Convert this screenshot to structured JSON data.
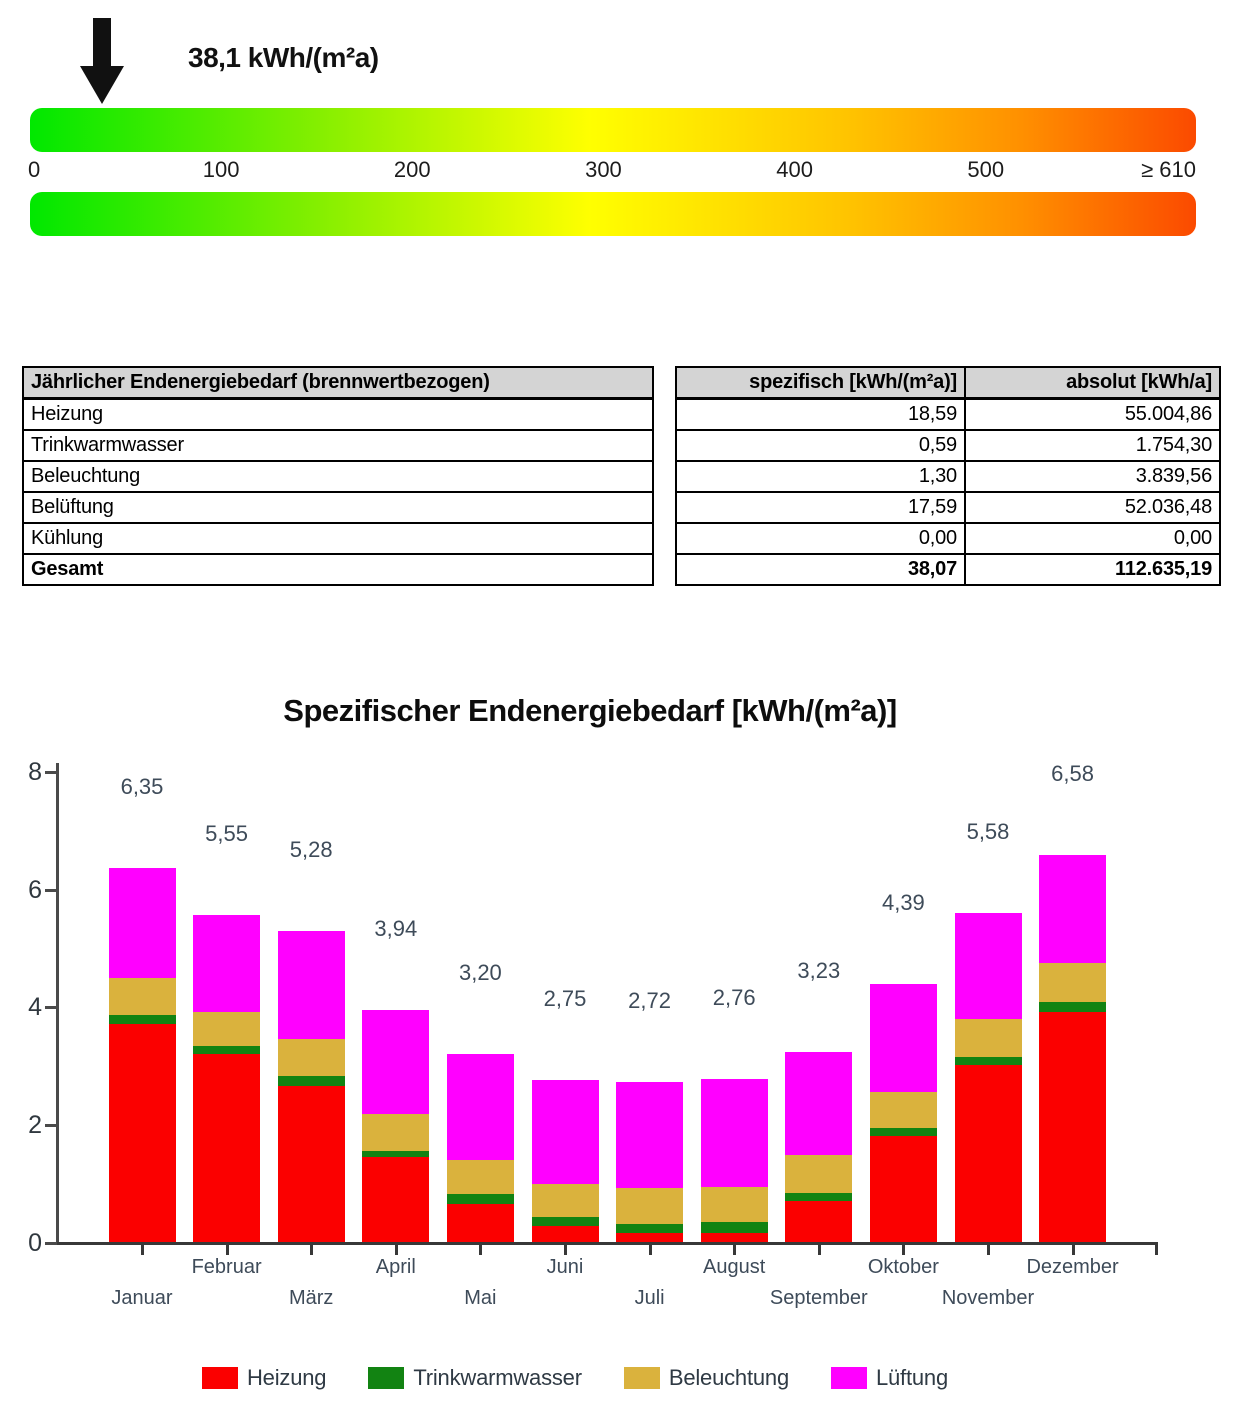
{
  "scale": {
    "pointer_value_label": "38,1 kWh/(m²a)",
    "pointer_value": 38.1,
    "min": 0,
    "max": 610,
    "ticks": [
      {
        "label": "0",
        "value": 0,
        "align": "left"
      },
      {
        "label": "100",
        "value": 100,
        "align": "center"
      },
      {
        "label": "200",
        "value": 200,
        "align": "center"
      },
      {
        "label": "300",
        "value": 300,
        "align": "center"
      },
      {
        "label": "400",
        "value": 400,
        "align": "center"
      },
      {
        "label": "500",
        "value": 500,
        "align": "center"
      },
      {
        "label": "≥ 610",
        "value": 610,
        "align": "right"
      }
    ],
    "gradient_stops": [
      [
        "#00e800",
        0
      ],
      [
        "#86ef00",
        25
      ],
      [
        "#ffff00",
        48
      ],
      [
        "#ffc400",
        70
      ],
      [
        "#ff9000",
        85
      ],
      [
        "#fb4a00",
        100
      ]
    ]
  },
  "table": {
    "header": {
      "category": "Jährlicher Endenergiebedarf (brennwertbezogen)",
      "spezifisch": "spezifisch [kWh/(m²a)]",
      "absolut": "absolut [kWh/a]"
    },
    "rows": [
      {
        "label": "Heizung",
        "spezifisch": "18,59",
        "absolut": "55.004,86"
      },
      {
        "label": "Trinkwarmwasser",
        "spezifisch": "0,59",
        "absolut": "1.754,30"
      },
      {
        "label": "Beleuchtung",
        "spezifisch": "1,30",
        "absolut": "3.839,56"
      },
      {
        "label": "Belüftung",
        "spezifisch": "17,59",
        "absolut": "52.036,48"
      },
      {
        "label": "Kühlung",
        "spezifisch": "0,00",
        "absolut": "0,00"
      },
      {
        "label": "Gesamt",
        "spezifisch": "38,07",
        "absolut": "112.635,19"
      }
    ]
  },
  "chart_data": {
    "type": "bar",
    "stacked": true,
    "title": "Spezifischer Endenergiebedarf [kWh/(m²a)]",
    "categories": [
      "Januar",
      "Februar",
      "März",
      "April",
      "Mai",
      "Juni",
      "Juli",
      "August",
      "September",
      "Oktober",
      "November",
      "Dezember"
    ],
    "series": [
      {
        "name": "Heizung",
        "color": "#fb0000",
        "values": [
          3.7,
          3.2,
          2.65,
          1.45,
          0.65,
          0.27,
          0.16,
          0.16,
          0.7,
          1.8,
          3.0,
          3.9
        ]
      },
      {
        "name": "Trinkwarmwasser",
        "color": "#128312",
        "values": [
          0.15,
          0.13,
          0.17,
          0.1,
          0.17,
          0.15,
          0.15,
          0.18,
          0.14,
          0.13,
          0.15,
          0.17
        ]
      },
      {
        "name": "Beleuchtung",
        "color": "#dab23d",
        "values": [
          0.63,
          0.57,
          0.62,
          0.62,
          0.58,
          0.56,
          0.6,
          0.6,
          0.64,
          0.62,
          0.63,
          0.66
        ]
      },
      {
        "name": "Lüftung",
        "color": "#ff00ff",
        "values": [
          1.87,
          1.65,
          1.84,
          1.77,
          1.8,
          1.77,
          1.81,
          1.82,
          1.75,
          1.84,
          1.8,
          1.85
        ]
      }
    ],
    "totals_labels": [
      "6,35",
      "5,55",
      "5,28",
      "3,94",
      "3,20",
      "2,75",
      "2,72",
      "2,76",
      "3,23",
      "4,39",
      "5,58",
      "6,58"
    ],
    "ylim": [
      0,
      8
    ],
    "yticks": [
      {
        "label": "0",
        "value": 0
      },
      {
        "label": "2",
        "value": 2
      },
      {
        "label": "4",
        "value": 4
      },
      {
        "label": "6",
        "value": 6
      },
      {
        "label": "8",
        "value": 8
      }
    ],
    "grid": false,
    "legend_position": "bottom"
  }
}
